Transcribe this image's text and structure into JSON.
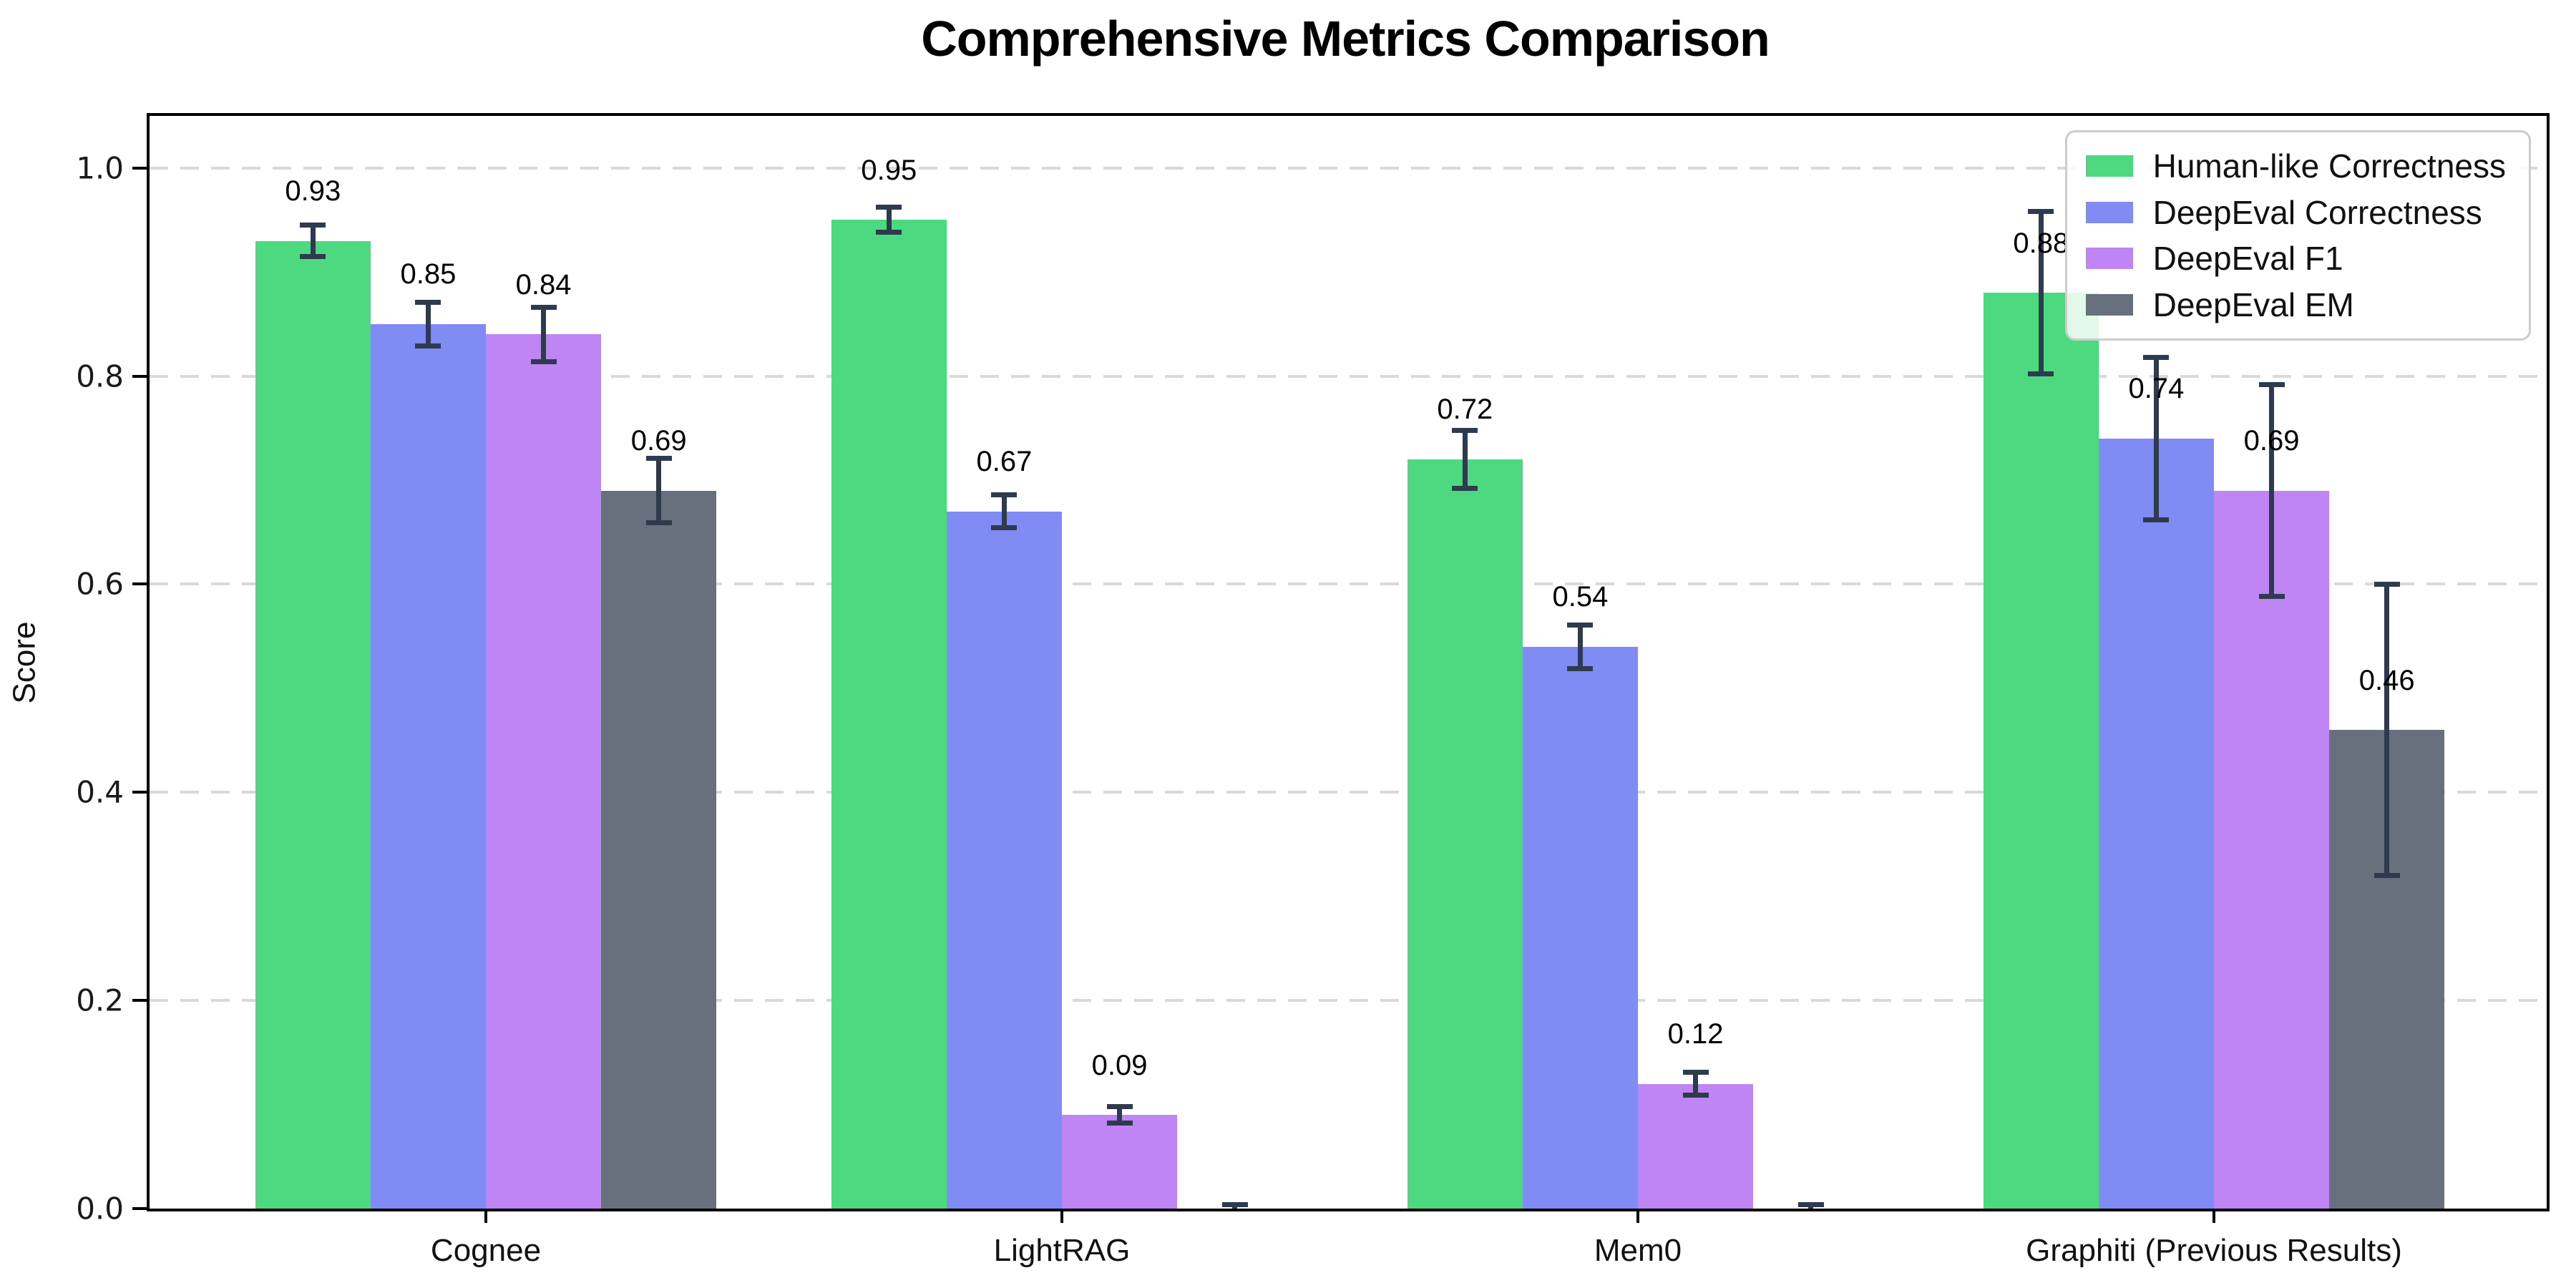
{
  "chart_data": {
    "type": "bar",
    "title": "Comprehensive Metrics Comparison",
    "ylabel": "Score",
    "xlabel": "",
    "categories": [
      "Cognee",
      "LightRAG",
      "Mem0",
      "Graphiti (Previous Results)"
    ],
    "ylim": [
      0,
      1.05
    ],
    "yticks": [
      {
        "label": "0.0",
        "value": 0.0
      },
      {
        "label": "0.2",
        "value": 0.2
      },
      {
        "label": "0.4",
        "value": 0.4
      },
      {
        "label": "0.6",
        "value": 0.6
      },
      {
        "label": "0.8",
        "value": 0.8
      },
      {
        "label": "1.0",
        "value": 1.0
      }
    ],
    "grid": "horizontal-dashed",
    "legend_position": "upper-right",
    "series": [
      {
        "name": "Human-like Correctness",
        "color": "#4cd97f",
        "values": [
          0.93,
          0.95,
          0.72,
          0.88
        ],
        "errors": [
          0.015,
          0.012,
          0.028,
          0.078
        ],
        "labels": [
          "0.93",
          "0.95",
          "0.72",
          "0.88"
        ]
      },
      {
        "name": "DeepEval Correctness",
        "color": "#808cf3",
        "values": [
          0.85,
          0.67,
          0.54,
          0.74
        ],
        "errors": [
          0.021,
          0.016,
          0.021,
          0.078
        ],
        "labels": [
          "0.85",
          "0.67",
          "0.54",
          "0.74"
        ]
      },
      {
        "name": "DeepEval F1",
        "color": "#bf85f5",
        "values": [
          0.84,
          0.09,
          0.12,
          0.69
        ],
        "errors": [
          0.026,
          0.008,
          0.011,
          0.102
        ],
        "labels": [
          "0.84",
          "0.09",
          "0.12",
          "0.69"
        ]
      },
      {
        "name": "DeepEval EM",
        "color": "#68707e",
        "values": [
          0.69,
          0.0,
          0.0,
          0.46
        ],
        "errors": [
          0.031,
          0.004,
          0.004,
          0.14
        ],
        "labels": [
          "0.69",
          "",
          "",
          "0.46"
        ]
      }
    ],
    "colors": {
      "error_bar": "#2e3b4e",
      "grid": "#d9d9d9",
      "axis": "#000000",
      "legend_border": "#cccccc"
    }
  }
}
